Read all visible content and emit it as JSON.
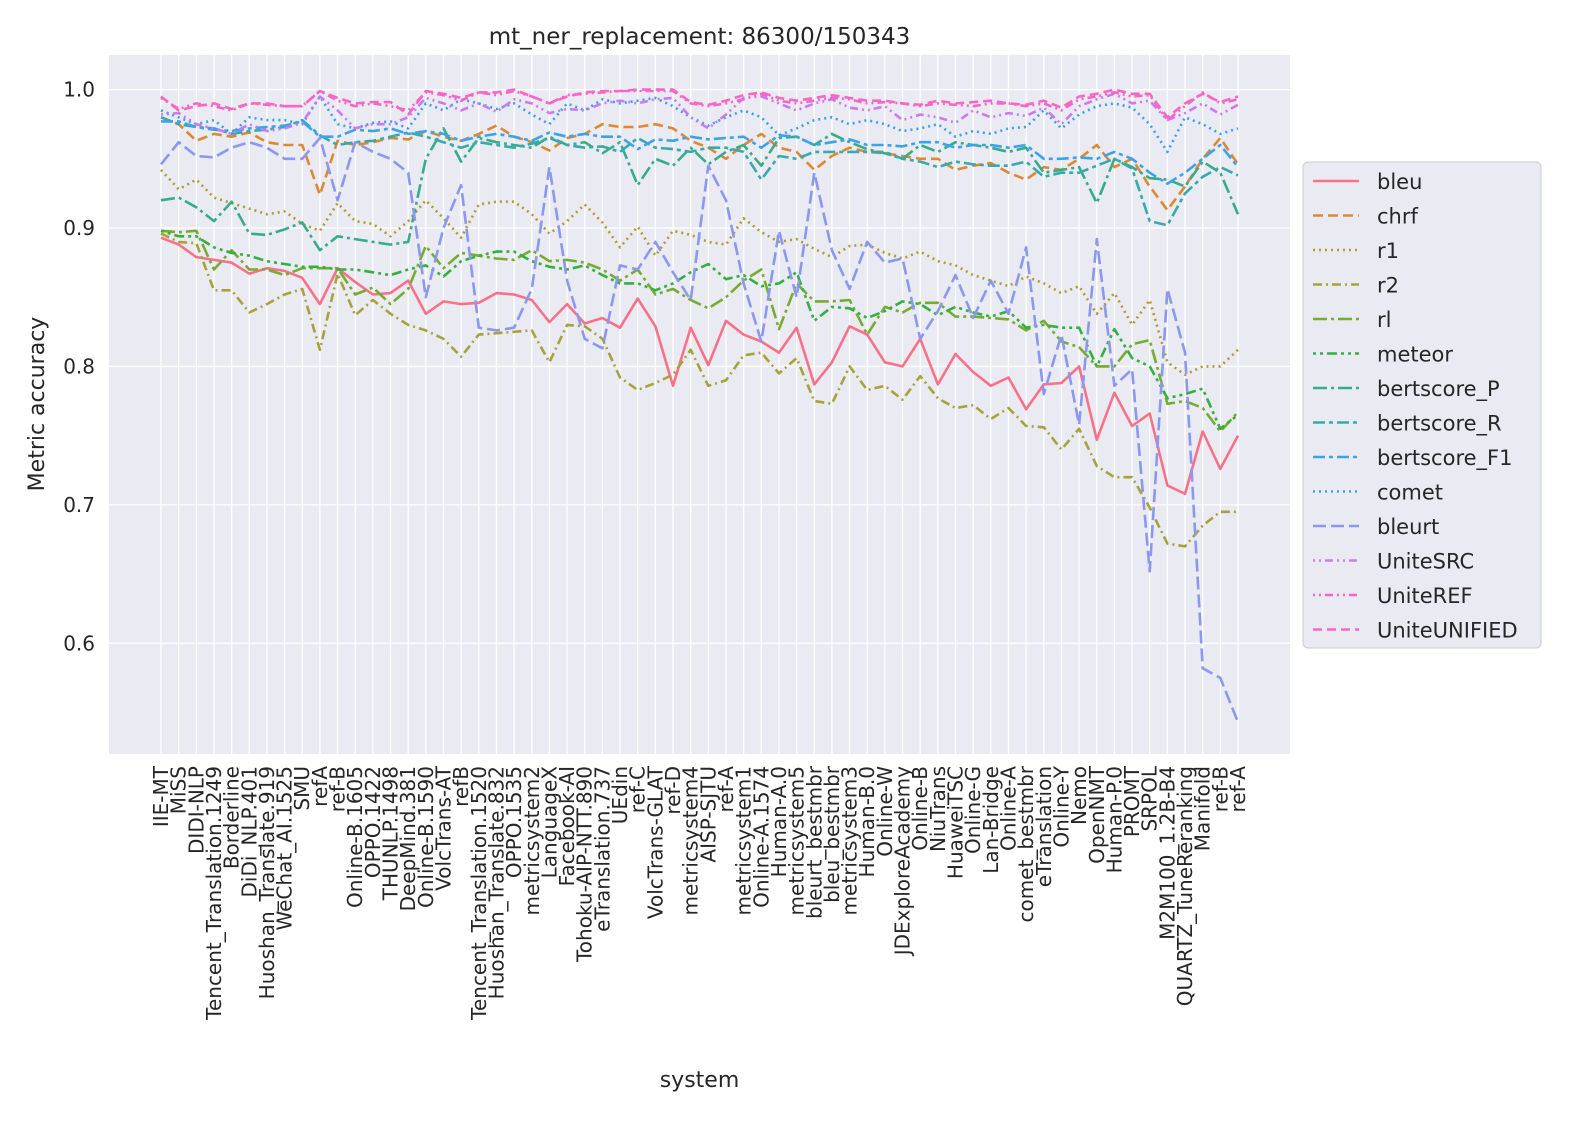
{
  "chart_data": {
    "type": "line",
    "title": "mt_ner_replacement: 86300/150343",
    "xlabel": "system",
    "ylabel": "Metric accuracy",
    "ylim": [
      0.52,
      1.025
    ],
    "yticks": [
      0.6,
      0.7,
      0.8,
      0.9,
      1.0
    ],
    "ytick_labels": [
      "0.6",
      "0.7",
      "0.8",
      "0.9",
      "1.0"
    ],
    "grid": true,
    "legend_position": "right",
    "categories": [
      "IIE-MT",
      "MiSS",
      "DIDI-NLP",
      "Tencent_Translation.1249",
      "Borderline",
      "DiDi_NLP.401",
      "Huoshan_Translate.919",
      "WeChat_AI.1525",
      "SMU",
      "refA",
      "ref-B",
      "Online-B.1605",
      "OPPO.1422",
      "THUNLP.1498",
      "DeepMind.381",
      "Online-B.1590",
      "VolcTrans-AT",
      "refB",
      "Tencent_Translation.1520",
      "Huoshan_Translate.832",
      "OPPO.1535",
      "metricsystem2",
      "LanguageX",
      "Facebook-AI",
      "Tohoku-AIP-NTT.890",
      "eTranslation.737",
      "UEdin",
      "ref-C",
      "VolcTrans-GLAT",
      "ref-D",
      "metricsystem4",
      "AISP-SJTU",
      "ref-A",
      "metricsystem1",
      "Online-A.1574",
      "Human-A.0",
      "metricsystem5",
      "bleurt_bestmbr",
      "bleu_bestmbr",
      "metricsystem3",
      "Human-B.0",
      "Online-W",
      "JDExploreAcademy",
      "Online-B",
      "NiuTrans",
      "HuaweiTSC",
      "Online-G",
      "Lan-Bridge",
      "Online-A",
      "comet_bestmbr",
      "eTranslation",
      "Online-Y",
      "Nemo",
      "OpenNMT",
      "Human-P.0",
      "PROMT",
      "SRPOL",
      "M2M100_1.2B-B4",
      "QUARTZ_TuneReranking",
      "Manifold",
      "ref-B",
      "ref-A"
    ],
    "series": [
      {
        "name": "bleu",
        "color": "#f77189",
        "dash": "solid",
        "values": [
          0.893,
          0.888,
          0.879,
          0.877,
          0.875,
          0.867,
          0.871,
          0.869,
          0.864,
          0.845,
          0.871,
          0.861,
          0.852,
          0.853,
          0.862,
          0.838,
          0.847,
          0.845,
          0.846,
          0.853,
          0.852,
          0.848,
          0.832,
          0.845,
          0.831,
          0.835,
          0.828,
          0.849,
          0.829,
          0.786,
          0.828,
          0.801,
          0.833,
          0.823,
          0.818,
          0.81,
          0.828,
          0.787,
          0.803,
          0.829,
          0.823,
          0.803,
          0.8,
          0.82,
          0.787,
          0.809,
          0.796,
          0.786,
          0.792,
          0.769,
          0.787,
          0.788,
          0.8,
          0.747,
          0.781,
          0.757,
          0.766,
          0.714,
          0.708,
          0.753,
          0.726,
          0.75
        ]
      },
      {
        "name": "chrf",
        "color": "#dc8932",
        "dash": "10,5",
        "values": [
          0.98,
          0.975,
          0.963,
          0.968,
          0.966,
          0.969,
          0.962,
          0.96,
          0.96,
          0.924,
          0.963,
          0.96,
          0.962,
          0.965,
          0.964,
          0.97,
          0.966,
          0.963,
          0.968,
          0.974,
          0.966,
          0.962,
          0.956,
          0.965,
          0.968,
          0.975,
          0.973,
          0.973,
          0.975,
          0.972,
          0.963,
          0.958,
          0.95,
          0.96,
          0.968,
          0.958,
          0.955,
          0.942,
          0.952,
          0.958,
          0.955,
          0.954,
          0.952,
          0.95,
          0.95,
          0.942,
          0.945,
          0.947,
          0.94,
          0.935,
          0.944,
          0.942,
          0.95,
          0.96,
          0.944,
          0.95,
          0.93,
          0.913,
          0.93,
          0.95,
          0.965,
          0.946
        ]
      },
      {
        "name": "r1",
        "color": "#ae9d31",
        "dash": "2,4",
        "values": [
          0.942,
          0.928,
          0.935,
          0.922,
          0.918,
          0.914,
          0.91,
          0.912,
          0.903,
          0.898,
          0.918,
          0.905,
          0.903,
          0.894,
          0.905,
          0.92,
          0.907,
          0.893,
          0.917,
          0.919,
          0.919,
          0.91,
          0.896,
          0.905,
          0.917,
          0.904,
          0.886,
          0.901,
          0.88,
          0.898,
          0.895,
          0.89,
          0.888,
          0.907,
          0.897,
          0.89,
          0.892,
          0.885,
          0.879,
          0.887,
          0.888,
          0.882,
          0.878,
          0.883,
          0.876,
          0.873,
          0.866,
          0.862,
          0.858,
          0.865,
          0.86,
          0.853,
          0.858,
          0.838,
          0.853,
          0.83,
          0.848,
          0.803,
          0.794,
          0.8,
          0.8,
          0.812
        ]
      },
      {
        "name": "r2",
        "color": "#a5a33a",
        "dash": "9,4,2,4",
        "values": [
          0.896,
          0.89,
          0.889,
          0.855,
          0.855,
          0.839,
          0.845,
          0.852,
          0.856,
          0.812,
          0.867,
          0.837,
          0.848,
          0.838,
          0.83,
          0.826,
          0.82,
          0.807,
          0.823,
          0.824,
          0.825,
          0.826,
          0.803,
          0.83,
          0.829,
          0.82,
          0.792,
          0.783,
          0.788,
          0.794,
          0.812,
          0.786,
          0.79,
          0.808,
          0.81,
          0.795,
          0.806,
          0.775,
          0.773,
          0.8,
          0.783,
          0.786,
          0.776,
          0.793,
          0.777,
          0.77,
          0.772,
          0.762,
          0.77,
          0.757,
          0.756,
          0.74,
          0.755,
          0.728,
          0.72,
          0.72,
          0.698,
          0.672,
          0.67,
          0.685,
          0.695,
          0.695
        ]
      },
      {
        "name": "rl",
        "color": "#77ab31",
        "dash": "14,4,3,4",
        "values": [
          0.898,
          0.897,
          0.898,
          0.87,
          0.884,
          0.87,
          0.87,
          0.866,
          0.871,
          0.871,
          0.871,
          0.852,
          0.857,
          0.845,
          0.856,
          0.887,
          0.871,
          0.882,
          0.88,
          0.878,
          0.877,
          0.884,
          0.876,
          0.877,
          0.875,
          0.87,
          0.862,
          0.87,
          0.852,
          0.856,
          0.848,
          0.842,
          0.85,
          0.862,
          0.87,
          0.827,
          0.86,
          0.847,
          0.847,
          0.848,
          0.823,
          0.843,
          0.839,
          0.846,
          0.846,
          0.836,
          0.836,
          0.835,
          0.834,
          0.826,
          0.833,
          0.818,
          0.814,
          0.8,
          0.8,
          0.816,
          0.819,
          0.773,
          0.775,
          0.77,
          0.753,
          0.767
        ]
      },
      {
        "name": "meteor",
        "color": "#33b040",
        "dash": "3,4,3,4,10,4",
        "values": [
          0.898,
          0.894,
          0.894,
          0.886,
          0.882,
          0.88,
          0.876,
          0.874,
          0.872,
          0.872,
          0.87,
          0.87,
          0.868,
          0.866,
          0.87,
          0.873,
          0.865,
          0.876,
          0.88,
          0.883,
          0.883,
          0.876,
          0.872,
          0.87,
          0.873,
          0.866,
          0.86,
          0.86,
          0.855,
          0.86,
          0.868,
          0.874,
          0.863,
          0.866,
          0.858,
          0.86,
          0.868,
          0.833,
          0.843,
          0.842,
          0.835,
          0.84,
          0.847,
          0.845,
          0.837,
          0.843,
          0.839,
          0.836,
          0.84,
          0.828,
          0.83,
          0.828,
          0.828,
          0.8,
          0.827,
          0.806,
          0.8,
          0.777,
          0.78,
          0.784,
          0.755,
          0.765
        ]
      },
      {
        "name": "bertscore_P",
        "color": "#36ad8a",
        "dash": "14,4,3,4",
        "values": [
          0.92,
          0.922,
          0.915,
          0.905,
          0.919,
          0.896,
          0.895,
          0.899,
          0.904,
          0.884,
          0.894,
          0.892,
          0.89,
          0.888,
          0.89,
          0.95,
          0.972,
          0.948,
          0.965,
          0.962,
          0.96,
          0.958,
          0.966,
          0.96,
          0.962,
          0.954,
          0.962,
          0.931,
          0.95,
          0.945,
          0.958,
          0.946,
          0.955,
          0.96,
          0.945,
          0.965,
          0.966,
          0.96,
          0.968,
          0.962,
          0.957,
          0.954,
          0.95,
          0.96,
          0.955,
          0.962,
          0.96,
          0.958,
          0.955,
          0.958,
          0.94,
          0.942,
          0.944,
          0.918,
          0.95,
          0.944,
          0.936,
          0.935,
          0.93,
          0.948,
          0.94,
          0.91
        ]
      },
      {
        "name": "bertscore_R",
        "color": "#38aaac",
        "dash": "12,4,4,4",
        "values": [
          0.98,
          0.975,
          0.973,
          0.972,
          0.968,
          0.97,
          0.971,
          0.973,
          0.978,
          0.967,
          0.96,
          0.962,
          0.963,
          0.966,
          0.969,
          0.966,
          0.962,
          0.958,
          0.962,
          0.96,
          0.958,
          0.961,
          0.965,
          0.96,
          0.958,
          0.959,
          0.955,
          0.965,
          0.958,
          0.957,
          0.955,
          0.958,
          0.958,
          0.955,
          0.935,
          0.952,
          0.95,
          0.955,
          0.955,
          0.955,
          0.955,
          0.955,
          0.95,
          0.948,
          0.944,
          0.948,
          0.946,
          0.945,
          0.945,
          0.948,
          0.937,
          0.94,
          0.94,
          0.945,
          0.95,
          0.943,
          0.905,
          0.902,
          0.925,
          0.937,
          0.944,
          0.938
        ]
      },
      {
        "name": "bertscore_F1",
        "color": "#3ba3ec",
        "dash": "12,4,4,4",
        "values": [
          0.977,
          0.977,
          0.973,
          0.971,
          0.97,
          0.972,
          0.973,
          0.974,
          0.977,
          0.966,
          0.966,
          0.971,
          0.97,
          0.972,
          0.968,
          0.97,
          0.968,
          0.963,
          0.966,
          0.968,
          0.966,
          0.963,
          0.969,
          0.966,
          0.968,
          0.966,
          0.966,
          0.957,
          0.964,
          0.963,
          0.966,
          0.964,
          0.965,
          0.966,
          0.958,
          0.967,
          0.966,
          0.96,
          0.962,
          0.964,
          0.96,
          0.96,
          0.959,
          0.962,
          0.962,
          0.958,
          0.96,
          0.96,
          0.958,
          0.96,
          0.95,
          0.95,
          0.951,
          0.95,
          0.955,
          0.95,
          0.94,
          0.932,
          0.94,
          0.95,
          0.96,
          0.944
        ]
      },
      {
        "name": "comet",
        "color": "#38a2e8",
        "dash": "2,4",
        "values": [
          0.985,
          0.98,
          0.975,
          0.978,
          0.968,
          0.98,
          0.978,
          0.978,
          0.975,
          0.995,
          0.975,
          0.972,
          0.976,
          0.977,
          0.972,
          0.99,
          0.985,
          0.993,
          0.99,
          0.986,
          0.99,
          0.982,
          0.975,
          0.99,
          0.985,
          0.993,
          0.99,
          0.992,
          0.994,
          0.988,
          0.98,
          0.974,
          0.98,
          0.985,
          0.98,
          0.967,
          0.972,
          0.978,
          0.98,
          0.975,
          0.978,
          0.975,
          0.97,
          0.972,
          0.975,
          0.966,
          0.97,
          0.968,
          0.972,
          0.973,
          0.985,
          0.972,
          0.982,
          0.988,
          0.99,
          0.987,
          0.975,
          0.955,
          0.98,
          0.975,
          0.968,
          0.972
        ]
      },
      {
        "name": "bleurt",
        "color": "#8c97ee",
        "dash": "13,5",
        "values": [
          0.946,
          0.962,
          0.952,
          0.951,
          0.958,
          0.962,
          0.958,
          0.95,
          0.95,
          0.965,
          0.92,
          0.962,
          0.955,
          0.95,
          0.94,
          0.85,
          0.9,
          0.931,
          0.828,
          0.826,
          0.828,
          0.856,
          0.944,
          0.862,
          0.82,
          0.813,
          0.873,
          0.87,
          0.89,
          0.868,
          0.848,
          0.945,
          0.92,
          0.86,
          0.818,
          0.898,
          0.85,
          0.94,
          0.884,
          0.856,
          0.89,
          0.875,
          0.878,
          0.82,
          0.84,
          0.866,
          0.835,
          0.862,
          0.838,
          0.886,
          0.78,
          0.823,
          0.758,
          0.892,
          0.786,
          0.798,
          0.652,
          0.856,
          0.81,
          0.582,
          0.575,
          0.543
        ]
      },
      {
        "name": "UniteSRC",
        "color": "#cc7af0",
        "dash": "2,4,2,4,8,4",
        "values": [
          0.982,
          0.983,
          0.975,
          0.972,
          0.968,
          0.975,
          0.97,
          0.972,
          0.976,
          0.995,
          0.985,
          0.972,
          0.975,
          0.975,
          0.98,
          0.994,
          0.99,
          0.985,
          0.99,
          0.984,
          0.993,
          0.99,
          0.983,
          0.986,
          0.985,
          0.99,
          0.992,
          0.99,
          0.993,
          0.994,
          0.98,
          0.972,
          0.982,
          0.994,
          0.995,
          0.99,
          0.985,
          0.99,
          0.993,
          0.987,
          0.985,
          0.988,
          0.978,
          0.982,
          0.98,
          0.976,
          0.985,
          0.98,
          0.983,
          0.981,
          0.987,
          0.975,
          0.988,
          0.993,
          0.997,
          0.99,
          0.992,
          0.978,
          0.983,
          0.99,
          0.982,
          0.989
        ]
      },
      {
        "name": "UniteREF",
        "color": "#f565cc",
        "dash": "2,4,2,4,8,4",
        "values": [
          0.994,
          0.986,
          0.99,
          0.988,
          0.985,
          0.99,
          0.989,
          0.988,
          0.988,
          0.999,
          0.992,
          0.988,
          0.99,
          0.988,
          0.985,
          0.998,
          0.996,
          0.992,
          0.998,
          0.996,
          0.999,
          0.995,
          0.99,
          0.996,
          0.997,
          0.998,
          0.999,
          0.999,
          0.999,
          0.999,
          0.99,
          0.988,
          0.99,
          0.993,
          0.997,
          0.992,
          0.99,
          0.992,
          0.994,
          0.993,
          0.99,
          0.991,
          0.99,
          0.988,
          0.99,
          0.989,
          0.988,
          0.99,
          0.99,
          0.988,
          0.99,
          0.985,
          0.993,
          0.995,
          0.998,
          0.995,
          0.996,
          0.978,
          0.988,
          0.998,
          0.99,
          0.993
        ]
      },
      {
        "name": "UniteUNIFIED",
        "color": "#f668c2",
        "dash": "9,5",
        "values": [
          0.995,
          0.985,
          0.988,
          0.99,
          0.986,
          0.99,
          0.99,
          0.988,
          0.988,
          0.999,
          0.994,
          0.99,
          0.991,
          0.991,
          0.982,
          0.999,
          0.997,
          0.994,
          0.998,
          0.998,
          1.0,
          0.995,
          0.99,
          0.995,
          0.998,
          0.999,
          0.999,
          1.0,
          1.0,
          1.0,
          0.991,
          0.989,
          0.992,
          0.996,
          0.998,
          0.994,
          0.992,
          0.994,
          0.996,
          0.994,
          0.992,
          0.992,
          0.99,
          0.989,
          0.992,
          0.99,
          0.991,
          0.992,
          0.99,
          0.989,
          0.992,
          0.987,
          0.995,
          0.997,
          1.0,
          0.997,
          0.997,
          0.98,
          0.99,
          0.997,
          0.991,
          0.995
        ]
      }
    ]
  }
}
